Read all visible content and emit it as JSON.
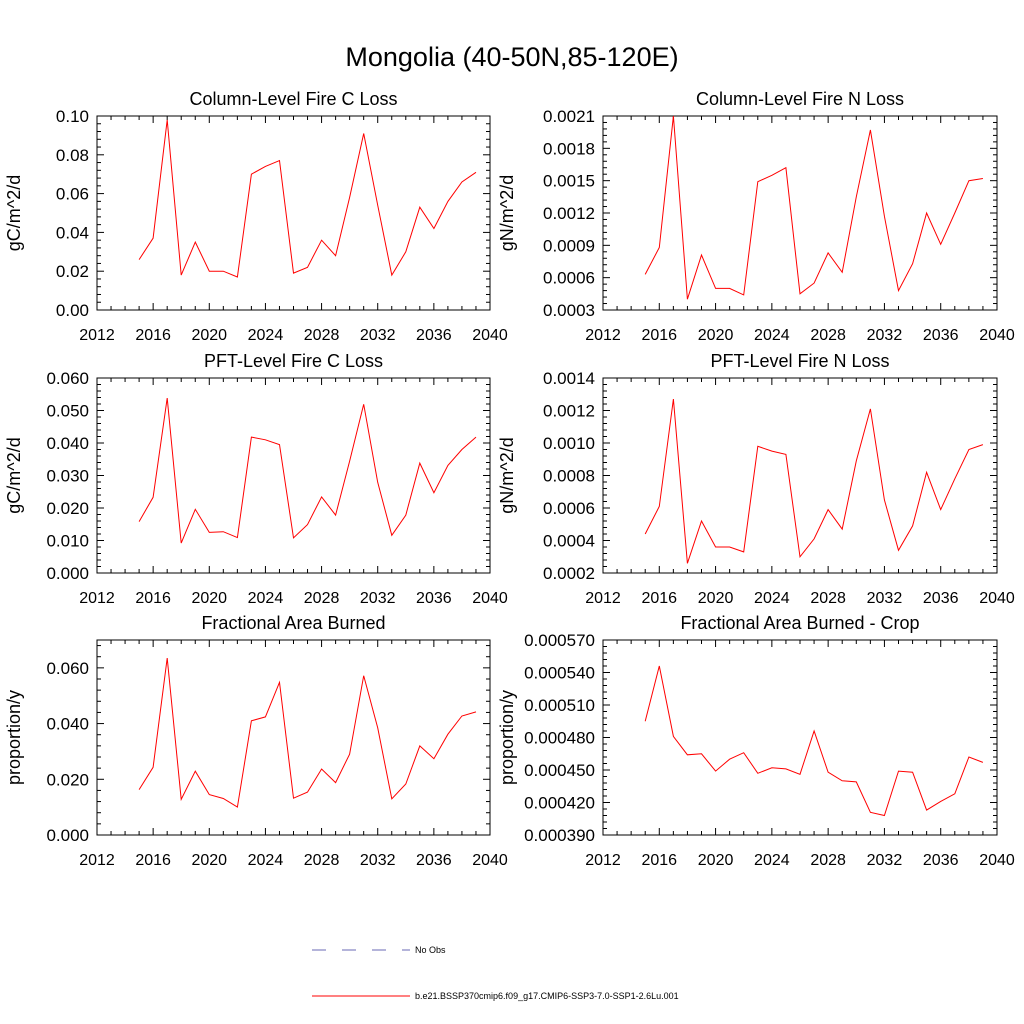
{
  "figure": {
    "title": "Mongolia (40-50N,85-120E)"
  },
  "legend": {
    "entries": [
      {
        "label": "No Obs",
        "color": "#6a6ab4",
        "style": "dashed"
      },
      {
        "label": "b.e21.BSSP370cmip6.f09_g17.CMIP6-SSP3-7.0-SSP1-2.6Lu.001",
        "color": "#ff0000",
        "style": "solid"
      }
    ]
  },
  "chart_data": [
    {
      "type": "line",
      "title": "Column-Level Fire C Loss",
      "ylabel": "gC/m^2/d",
      "xlim": [
        2012,
        2040
      ],
      "ylim": [
        0,
        0.1
      ],
      "x_ticks": [
        "2012",
        "2016",
        "2020",
        "2024",
        "2028",
        "2032",
        "2036",
        "2040"
      ],
      "y_ticks": [
        "0.00",
        "0.02",
        "0.04",
        "0.06",
        "0.08",
        "0.10"
      ],
      "x": [
        2015,
        2016,
        2017,
        2018,
        2019,
        2020,
        2021,
        2022,
        2023,
        2024,
        2025,
        2026,
        2027,
        2028,
        2029,
        2030,
        2031,
        2032,
        2033,
        2034,
        2035,
        2036,
        2037,
        2038,
        2039
      ],
      "series": [
        {
          "name": "b.e21.BSSP370cmip6.f09_g17.CMIP6-SSP3-7.0-SSP1-2.6Lu.001",
          "color": "#ff0000",
          "values": [
            0.026,
            0.037,
            0.098,
            0.018,
            0.035,
            0.02,
            0.02,
            0.017,
            0.07,
            0.074,
            0.077,
            0.019,
            0.022,
            0.036,
            0.028,
            0.058,
            0.091,
            0.054,
            0.018,
            0.03,
            0.053,
            0.042,
            0.056,
            0.066,
            0.071
          ]
        }
      ]
    },
    {
      "type": "line",
      "title": "Column-Level Fire N Loss",
      "ylabel": "gN/m^2/d",
      "xlim": [
        2012,
        2040
      ],
      "ylim": [
        0.0003,
        0.0021
      ],
      "x_ticks": [
        "2012",
        "2016",
        "2020",
        "2024",
        "2028",
        "2032",
        "2036",
        "2040"
      ],
      "y_ticks": [
        "0.0003",
        "0.0006",
        "0.0009",
        "0.0012",
        "0.0015",
        "0.0018",
        "0.0021"
      ],
      "x": [
        2015,
        2016,
        2017,
        2018,
        2019,
        2020,
        2021,
        2022,
        2023,
        2024,
        2025,
        2026,
        2027,
        2028,
        2029,
        2030,
        2031,
        2032,
        2033,
        2034,
        2035,
        2036,
        2037,
        2038,
        2039
      ],
      "series": [
        {
          "name": "b.e21.BSSP370cmip6.f09_g17.CMIP6-SSP3-7.0-SSP1-2.6Lu.001",
          "color": "#ff0000",
          "values": [
            0.00063,
            0.00088,
            0.0021,
            0.0004,
            0.00081,
            0.0005,
            0.0005,
            0.00044,
            0.00149,
            0.00155,
            0.00162,
            0.00045,
            0.00055,
            0.00083,
            0.00065,
            0.00135,
            0.00197,
            0.00117,
            0.00048,
            0.00073,
            0.0012,
            0.00091,
            0.0012,
            0.0015,
            0.00152
          ]
        }
      ]
    },
    {
      "type": "line",
      "title": "PFT-Level Fire C Loss",
      "ylabel": "gC/m^2/d",
      "xlim": [
        2012,
        2040
      ],
      "ylim": [
        0,
        0.06
      ],
      "x_ticks": [
        "2012",
        "2016",
        "2020",
        "2024",
        "2028",
        "2032",
        "2036",
        "2040"
      ],
      "y_ticks": [
        "0.000",
        "0.010",
        "0.020",
        "0.030",
        "0.040",
        "0.050",
        "0.060"
      ],
      "x": [
        2015,
        2016,
        2017,
        2018,
        2019,
        2020,
        2021,
        2022,
        2023,
        2024,
        2025,
        2026,
        2027,
        2028,
        2029,
        2030,
        2031,
        2032,
        2033,
        2034,
        2035,
        2036,
        2037,
        2038,
        2039
      ],
      "series": [
        {
          "name": "b.e21.BSSP370cmip6.f09_g17.CMIP6-SSP3-7.0-SSP1-2.6Lu.001",
          "color": "#ff0000",
          "values": [
            0.0158,
            0.0233,
            0.0538,
            0.0092,
            0.0196,
            0.0125,
            0.0127,
            0.0109,
            0.0418,
            0.041,
            0.0395,
            0.0108,
            0.0149,
            0.0234,
            0.0178,
            0.0344,
            0.0519,
            0.0279,
            0.0116,
            0.0178,
            0.0338,
            0.0247,
            0.0331,
            0.038,
            0.0418
          ]
        }
      ]
    },
    {
      "type": "line",
      "title": "PFT-Level Fire N Loss",
      "ylabel": "gN/m^2/d",
      "xlim": [
        2012,
        2040
      ],
      "ylim": [
        0.0002,
        0.0014
      ],
      "x_ticks": [
        "2012",
        "2016",
        "2020",
        "2024",
        "2028",
        "2032",
        "2036",
        "2040"
      ],
      "y_ticks": [
        "0.0002",
        "0.0004",
        "0.0006",
        "0.0008",
        "0.0010",
        "0.0012",
        "0.0014"
      ],
      "x": [
        2015,
        2016,
        2017,
        2018,
        2019,
        2020,
        2021,
        2022,
        2023,
        2024,
        2025,
        2026,
        2027,
        2028,
        2029,
        2030,
        2031,
        2032,
        2033,
        2034,
        2035,
        2036,
        2037,
        2038,
        2039
      ],
      "series": [
        {
          "name": "b.e21.BSSP370cmip6.f09_g17.CMIP6-SSP3-7.0-SSP1-2.6Lu.001",
          "color": "#ff0000",
          "values": [
            0.00044,
            0.00061,
            0.00127,
            0.00026,
            0.00052,
            0.00036,
            0.00036,
            0.00033,
            0.00098,
            0.00095,
            0.00093,
            0.0003,
            0.00041,
            0.00059,
            0.00047,
            0.00089,
            0.00121,
            0.00065,
            0.00034,
            0.00049,
            0.00082,
            0.00059,
            0.00078,
            0.00096,
            0.00099
          ]
        }
      ]
    },
    {
      "type": "line",
      "title": "Fractional Area Burned",
      "ylabel": "proportion/y",
      "xlim": [
        2012,
        2040
      ],
      "ylim": [
        0,
        0.07
      ],
      "x_ticks": [
        "2012",
        "2016",
        "2020",
        "2024",
        "2028",
        "2032",
        "2036",
        "2040"
      ],
      "y_ticks": [
        "0.000",
        "0.020",
        "0.040",
        "0.060"
      ],
      "y_tick_values": [
        0,
        0.02,
        0.04,
        0.06
      ],
      "x": [
        2015,
        2016,
        2017,
        2018,
        2019,
        2020,
        2021,
        2022,
        2023,
        2024,
        2025,
        2026,
        2027,
        2028,
        2029,
        2030,
        2031,
        2032,
        2033,
        2034,
        2035,
        2036,
        2037,
        2038,
        2039
      ],
      "series": [
        {
          "name": "b.e21.BSSP370cmip6.f09_g17.CMIP6-SSP3-7.0-SSP1-2.6Lu.001",
          "color": "#ff0000",
          "values": [
            0.0163,
            0.0243,
            0.0635,
            0.0128,
            0.0229,
            0.0145,
            0.0131,
            0.01,
            0.041,
            0.0424,
            0.0548,
            0.0132,
            0.0154,
            0.0237,
            0.0188,
            0.029,
            0.0572,
            0.0385,
            0.013,
            0.0183,
            0.032,
            0.0274,
            0.0362,
            0.0427,
            0.0442
          ]
        }
      ]
    },
    {
      "type": "line",
      "title": "Fractional Area Burned - Crop",
      "ylabel": "proportion/y",
      "xlim": [
        2012,
        2040
      ],
      "ylim": [
        0.00039,
        0.00057
      ],
      "x_ticks": [
        "2012",
        "2016",
        "2020",
        "2024",
        "2028",
        "2032",
        "2036",
        "2040"
      ],
      "y_ticks": [
        "0.000390",
        "0.000420",
        "0.000450",
        "0.000480",
        "0.000510",
        "0.000540",
        "0.000570"
      ],
      "x": [
        2015,
        2016,
        2017,
        2018,
        2019,
        2020,
        2021,
        2022,
        2023,
        2024,
        2025,
        2026,
        2027,
        2028,
        2029,
        2030,
        2031,
        2032,
        2033,
        2034,
        2035,
        2036,
        2037,
        2038,
        2039
      ],
      "series": [
        {
          "name": "b.e21.BSSP370cmip6.f09_g17.CMIP6-SSP3-7.0-SSP1-2.6Lu.001",
          "color": "#ff0000",
          "values": [
            0.000495,
            0.000546,
            0.000481,
            0.000464,
            0.000465,
            0.000449,
            0.00046,
            0.000466,
            0.000447,
            0.000452,
            0.000451,
            0.000446,
            0.000486,
            0.000448,
            0.00044,
            0.000439,
            0.000411,
            0.000408,
            0.000449,
            0.000448,
            0.000413,
            0.000421,
            0.000428,
            0.000462,
            0.000457
          ]
        }
      ]
    }
  ]
}
